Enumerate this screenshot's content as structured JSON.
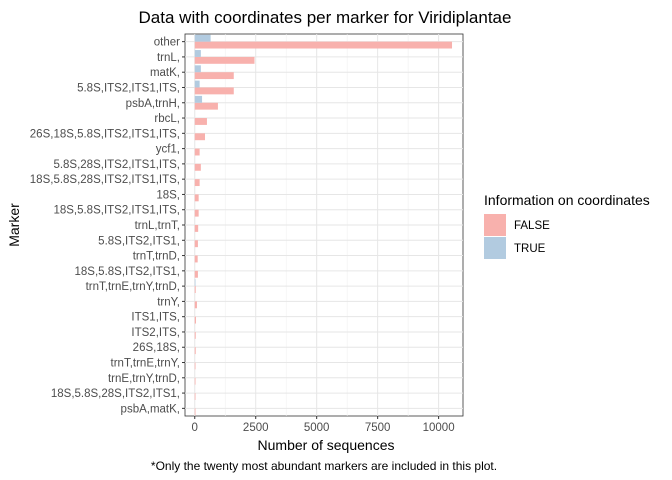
{
  "chart_data": {
    "type": "bar",
    "orientation": "horizontal",
    "title": "Data with coordinates per marker for Viridiplantae",
    "xlabel": "Number of sequences",
    "ylabel": "Marker",
    "caption": "*Only the twenty most abundant markers are included in this plot.",
    "xlim": [
      -400,
      11000
    ],
    "xticks": [
      0,
      2500,
      5000,
      7500,
      10000
    ],
    "grid": true,
    "legend": {
      "title": "Information on coordinates",
      "position": "right"
    },
    "categories": [
      "other",
      "trnL,",
      "matK,",
      "5.8S,ITS2,ITS1,ITS,",
      "psbA,trnH,",
      "rbcL,",
      "26S,18S,5.8S,ITS2,ITS1,ITS,",
      "ycf1,",
      "5.8S,28S,ITS2,ITS1,ITS,",
      "18S,5.8S,28S,ITS2,ITS1,ITS,",
      "18S,",
      "18S,5.8S,ITS2,ITS1,ITS,",
      "trnL,trnT,",
      "5.8S,ITS2,ITS1,",
      "trnT,trnD,",
      "18S,5.8S,ITS2,ITS1,",
      "trnT,trnE,trnY,trnD,",
      "trnY,",
      "ITS1,ITS,",
      "ITS2,ITS,",
      "26S,18S,",
      "trnT,trnE,trnY,",
      "trnE,trnY,trnD,",
      "18S,5.8S,28S,ITS2,ITS1,",
      "psbA,matK,"
    ],
    "series": [
      {
        "name": "FALSE",
        "color": "#f8b1ad",
        "values": [
          10550,
          2450,
          1600,
          1600,
          950,
          500,
          420,
          200,
          250,
          200,
          160,
          160,
          140,
          130,
          120,
          130,
          40,
          90,
          50,
          40,
          40,
          30,
          30,
          30,
          30
        ]
      },
      {
        "name": "TRUE",
        "color": "#b2cbe0",
        "values": [
          650,
          250,
          250,
          200,
          300,
          0,
          0,
          0,
          0,
          0,
          0,
          0,
          0,
          0,
          0,
          0,
          30,
          0,
          0,
          0,
          0,
          0,
          0,
          0,
          0
        ]
      }
    ]
  }
}
